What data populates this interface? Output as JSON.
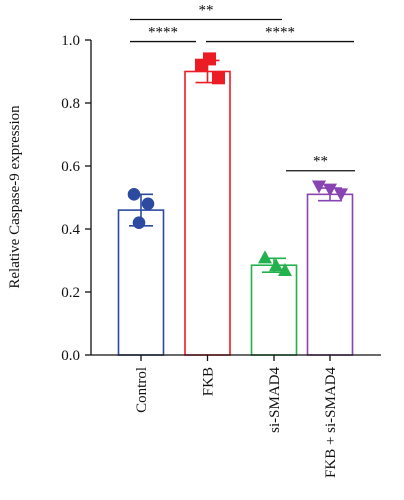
{
  "chart_data": {
    "type": "bar",
    "ylabel": "Relative Caspase-9 expression",
    "xlabel": "",
    "ylim": [
      0,
      1.0
    ],
    "yticks": [
      0.0,
      0.2,
      0.4,
      0.6,
      0.8,
      1.0
    ],
    "ytick_labels": [
      "0.0",
      "0.2",
      "0.4",
      "0.6",
      "0.8",
      "1.0"
    ],
    "grid": false,
    "categories": [
      "Control",
      "FKB",
      "si-SMAD4",
      "FKB + si-SMAD4"
    ],
    "values": [
      0.46,
      0.9,
      0.285,
      0.51
    ],
    "error": [
      0.05,
      0.035,
      0.022,
      0.02
    ],
    "colors": [
      "#2b4aa0",
      "#ec1c24",
      "#22b14c",
      "#8844b2"
    ],
    "markers": [
      "circle",
      "square",
      "triangle-up",
      "triangle-down"
    ],
    "points": [
      [
        0.51,
        0.48,
        0.42
      ],
      [
        0.94,
        0.92,
        0.88
      ],
      [
        0.31,
        0.285,
        0.27
      ],
      [
        0.535,
        0.525,
        0.51
      ]
    ],
    "significance": [
      {
        "from": 0,
        "to": 2,
        "y": 1.065,
        "label": "**"
      },
      {
        "from": 0,
        "to": 1,
        "y": 0.995,
        "label": "****"
      },
      {
        "from": 1,
        "to": 3,
        "y": 0.995,
        "label": "****"
      },
      {
        "from": 2,
        "to": 3,
        "y": 0.585,
        "label": "**"
      }
    ]
  }
}
